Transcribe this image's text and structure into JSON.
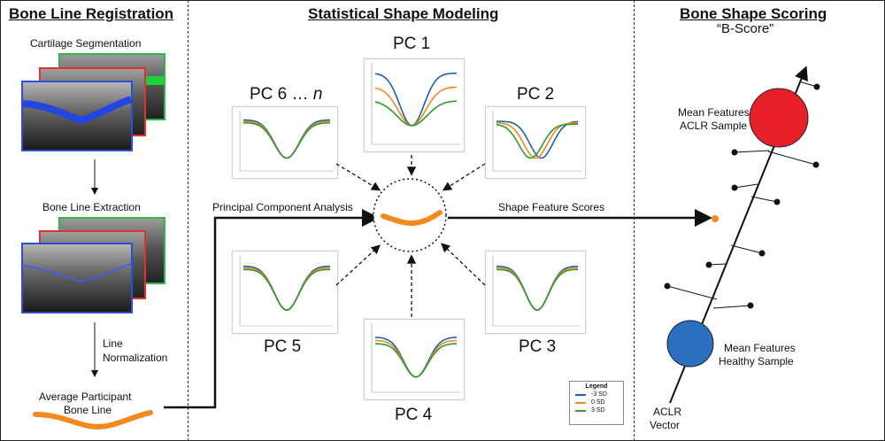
{
  "panels": {
    "registration": {
      "title": "Bone Line Registration",
      "cartilage_segmentation": "Cartilage Segmentation",
      "bone_line_extraction": "Bone Line Extraction",
      "line_normalization_1": "Line",
      "line_normalization_2": "Normalization",
      "average_1": "Average Participant",
      "average_2": "Bone Line"
    },
    "modeling": {
      "title": "Statistical Shape Modeling",
      "pca_label": "Principal Component Analysis",
      "scores_label": "Shape Feature Scores",
      "pc_labels": {
        "pc1": "PC 1",
        "pc2": "PC 2",
        "pc3": "PC 3",
        "pc4": "PC 4",
        "pc5": "PC 5",
        "pc6_prefix": "PC 6 … ",
        "pc6_n": "n"
      },
      "legend": {
        "title": "Legend",
        "items": [
          {
            "label": "-3 SD",
            "color": "#1f5fb0"
          },
          {
            "label": "0 SD",
            "color": "#f28a1e"
          },
          {
            "label": "3 SD",
            "color": "#2f9a2f"
          }
        ]
      }
    },
    "scoring": {
      "title": "Bone Shape Scoring",
      "subtitle": "“B-Score”",
      "acl_1": "Mean Features",
      "acl_2": "ACLR Sample",
      "healthy_1": "Mean Features",
      "healthy_2": "Healthy Sample",
      "vector_1": "ACLR",
      "vector_2": "Vector"
    }
  },
  "colors": {
    "blue": "#1f5fb0",
    "orange": "#f28a1e",
    "green": "#2f9a2f",
    "aclr_circle": "#e8202a",
    "healthy_circle": "#2a6fc0"
  }
}
